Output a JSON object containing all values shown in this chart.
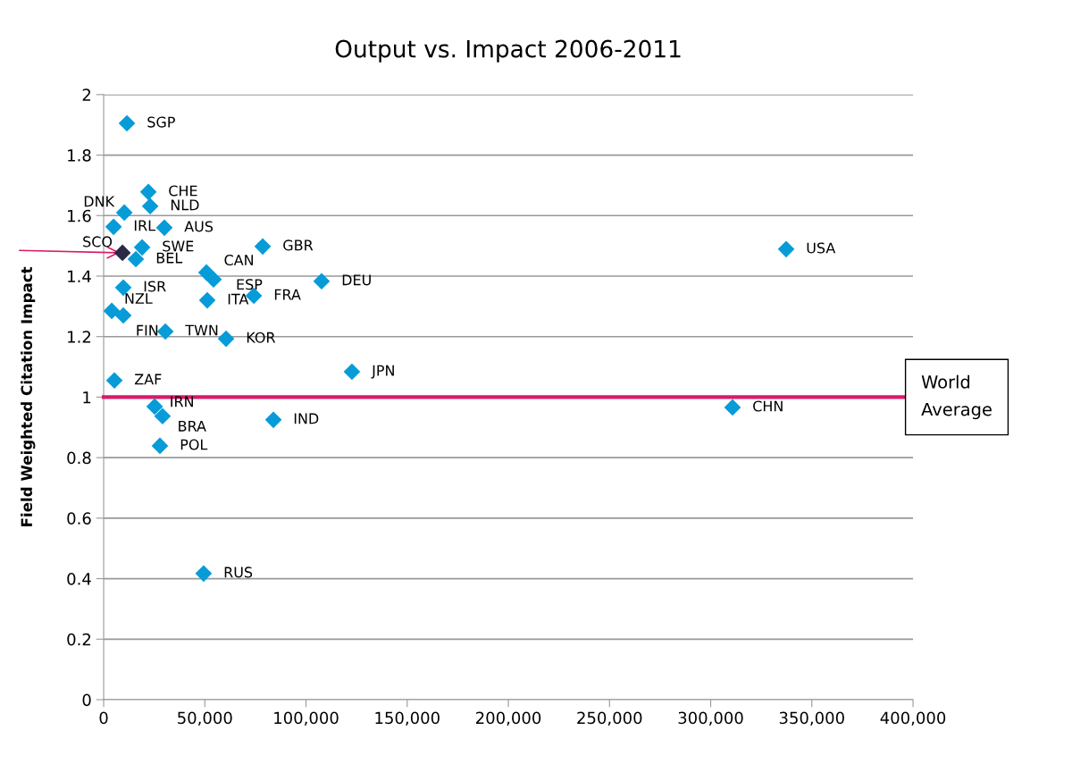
{
  "chart_data": {
    "type": "scatter",
    "title": "Output vs. Impact 2006-2011",
    "ylabel": "Field Weighted Citation Impact",
    "x": [
      11500,
      22100,
      23000,
      10200,
      4900,
      30000,
      19000,
      9300,
      15900,
      50800,
      54300,
      78600,
      107700,
      74200,
      51200,
      9700,
      4000,
      9700,
      30500,
      60500,
      5300,
      122700,
      25200,
      29100,
      27800,
      83900,
      49400,
      310800,
      337300
    ],
    "values": [
      1.905,
      1.678,
      1.631,
      1.61,
      1.563,
      1.56,
      1.495,
      1.477,
      1.456,
      1.412,
      1.389,
      1.498,
      1.383,
      1.335,
      1.32,
      1.362,
      1.285,
      1.27,
      1.217,
      1.193,
      1.055,
      1.084,
      0.969,
      0.937,
      0.839,
      0.925,
      0.417,
      0.966,
      1.489
    ],
    "colors": [
      "#079bd8",
      "#079bd8",
      "#079bd8",
      "#079bd8",
      "#079bd8",
      "#079bd8",
      "#079bd8",
      "#2b2848",
      "#079bd8",
      "#079bd8",
      "#079bd8",
      "#079bd8",
      "#079bd8",
      "#079bd8",
      "#079bd8",
      "#079bd8",
      "#079bd8",
      "#079bd8",
      "#079bd8",
      "#079bd8",
      "#079bd8",
      "#079bd8",
      "#079bd8",
      "#079bd8",
      "#079bd8",
      "#079bd8",
      "#079bd8",
      "#079bd8",
      "#079bd8"
    ],
    "annotations": [
      {
        "text": "SGP",
        "x": 11500,
        "y": 1.905
      },
      {
        "text": "CHE",
        "x": 22100,
        "y": 1.678
      },
      {
        "text": "NLD",
        "x": 23000,
        "y": 1.631
      },
      {
        "text": "DNK",
        "x": 10200,
        "y": 1.61
      },
      {
        "text": "IRL",
        "x": 4900,
        "y": 1.563
      },
      {
        "text": "AUS",
        "x": 30000,
        "y": 1.56
      },
      {
        "text": "SWE",
        "x": 19000,
        "y": 1.495
      },
      {
        "text": "SCO",
        "x": 9300,
        "y": 1.477
      },
      {
        "text": "BEL",
        "x": 15900,
        "y": 1.456
      },
      {
        "text": "CAN",
        "x": 50800,
        "y": 1.412
      },
      {
        "text": "ESP",
        "x": 54300,
        "y": 1.389
      },
      {
        "text": "GBR",
        "x": 78600,
        "y": 1.498
      },
      {
        "text": "DEU",
        "x": 107700,
        "y": 1.383
      },
      {
        "text": "FRA",
        "x": 74200,
        "y": 1.335
      },
      {
        "text": "ITA",
        "x": 51200,
        "y": 1.32
      },
      {
        "text": "ISR",
        "x": 9700,
        "y": 1.362
      },
      {
        "text": "NZL",
        "x": 4000,
        "y": 1.285
      },
      {
        "text": "FIN",
        "x": 9700,
        "y": 1.27
      },
      {
        "text": "TWN",
        "x": 30500,
        "y": 1.217
      },
      {
        "text": "KOR",
        "x": 60500,
        "y": 1.193
      },
      {
        "text": "ZAF",
        "x": 5300,
        "y": 1.055
      },
      {
        "text": "JPN",
        "x": 122700,
        "y": 1.084
      },
      {
        "text": "IRN",
        "x": 25200,
        "y": 0.969
      },
      {
        "text": "BRA",
        "x": 29100,
        "y": 0.937
      },
      {
        "text": "POL",
        "x": 27800,
        "y": 0.839
      },
      {
        "text": "IND",
        "x": 83900,
        "y": 0.925
      },
      {
        "text": "RUS",
        "x": 49400,
        "y": 0.417
      },
      {
        "text": "CHN",
        "x": 310800,
        "y": 0.966
      },
      {
        "text": "USA",
        "x": 337300,
        "y": 1.489
      }
    ],
    "ref_lines": [
      {
        "axis": "y",
        "value": 1,
        "label": "World\nAverage",
        "color": "#d81b68"
      }
    ],
    "xlim": [
      0,
      400000
    ],
    "xticks": [
      0,
      {
        "value": 50000,
        "label": "50,000"
      },
      {
        "value": 100000,
        "label": "100,000"
      },
      {
        "value": 150000,
        "label": "150,000"
      },
      {
        "value": 200000,
        "label": "200,000"
      },
      {
        "value": 250000,
        "label": "250,000"
      },
      {
        "value": 300000,
        "label": "300,000"
      },
      {
        "value": 350000,
        "label": "350,000"
      },
      {
        "value": 400000,
        "label": "400,000"
      }
    ],
    "ylim": [
      0,
      2
    ],
    "yticks": [
      0,
      0.2,
      0.4,
      0.6,
      0.8,
      1,
      1.2,
      1.4,
      1.6,
      1.8,
      2
    ],
    "grid": "y",
    "marker": "diamond"
  }
}
